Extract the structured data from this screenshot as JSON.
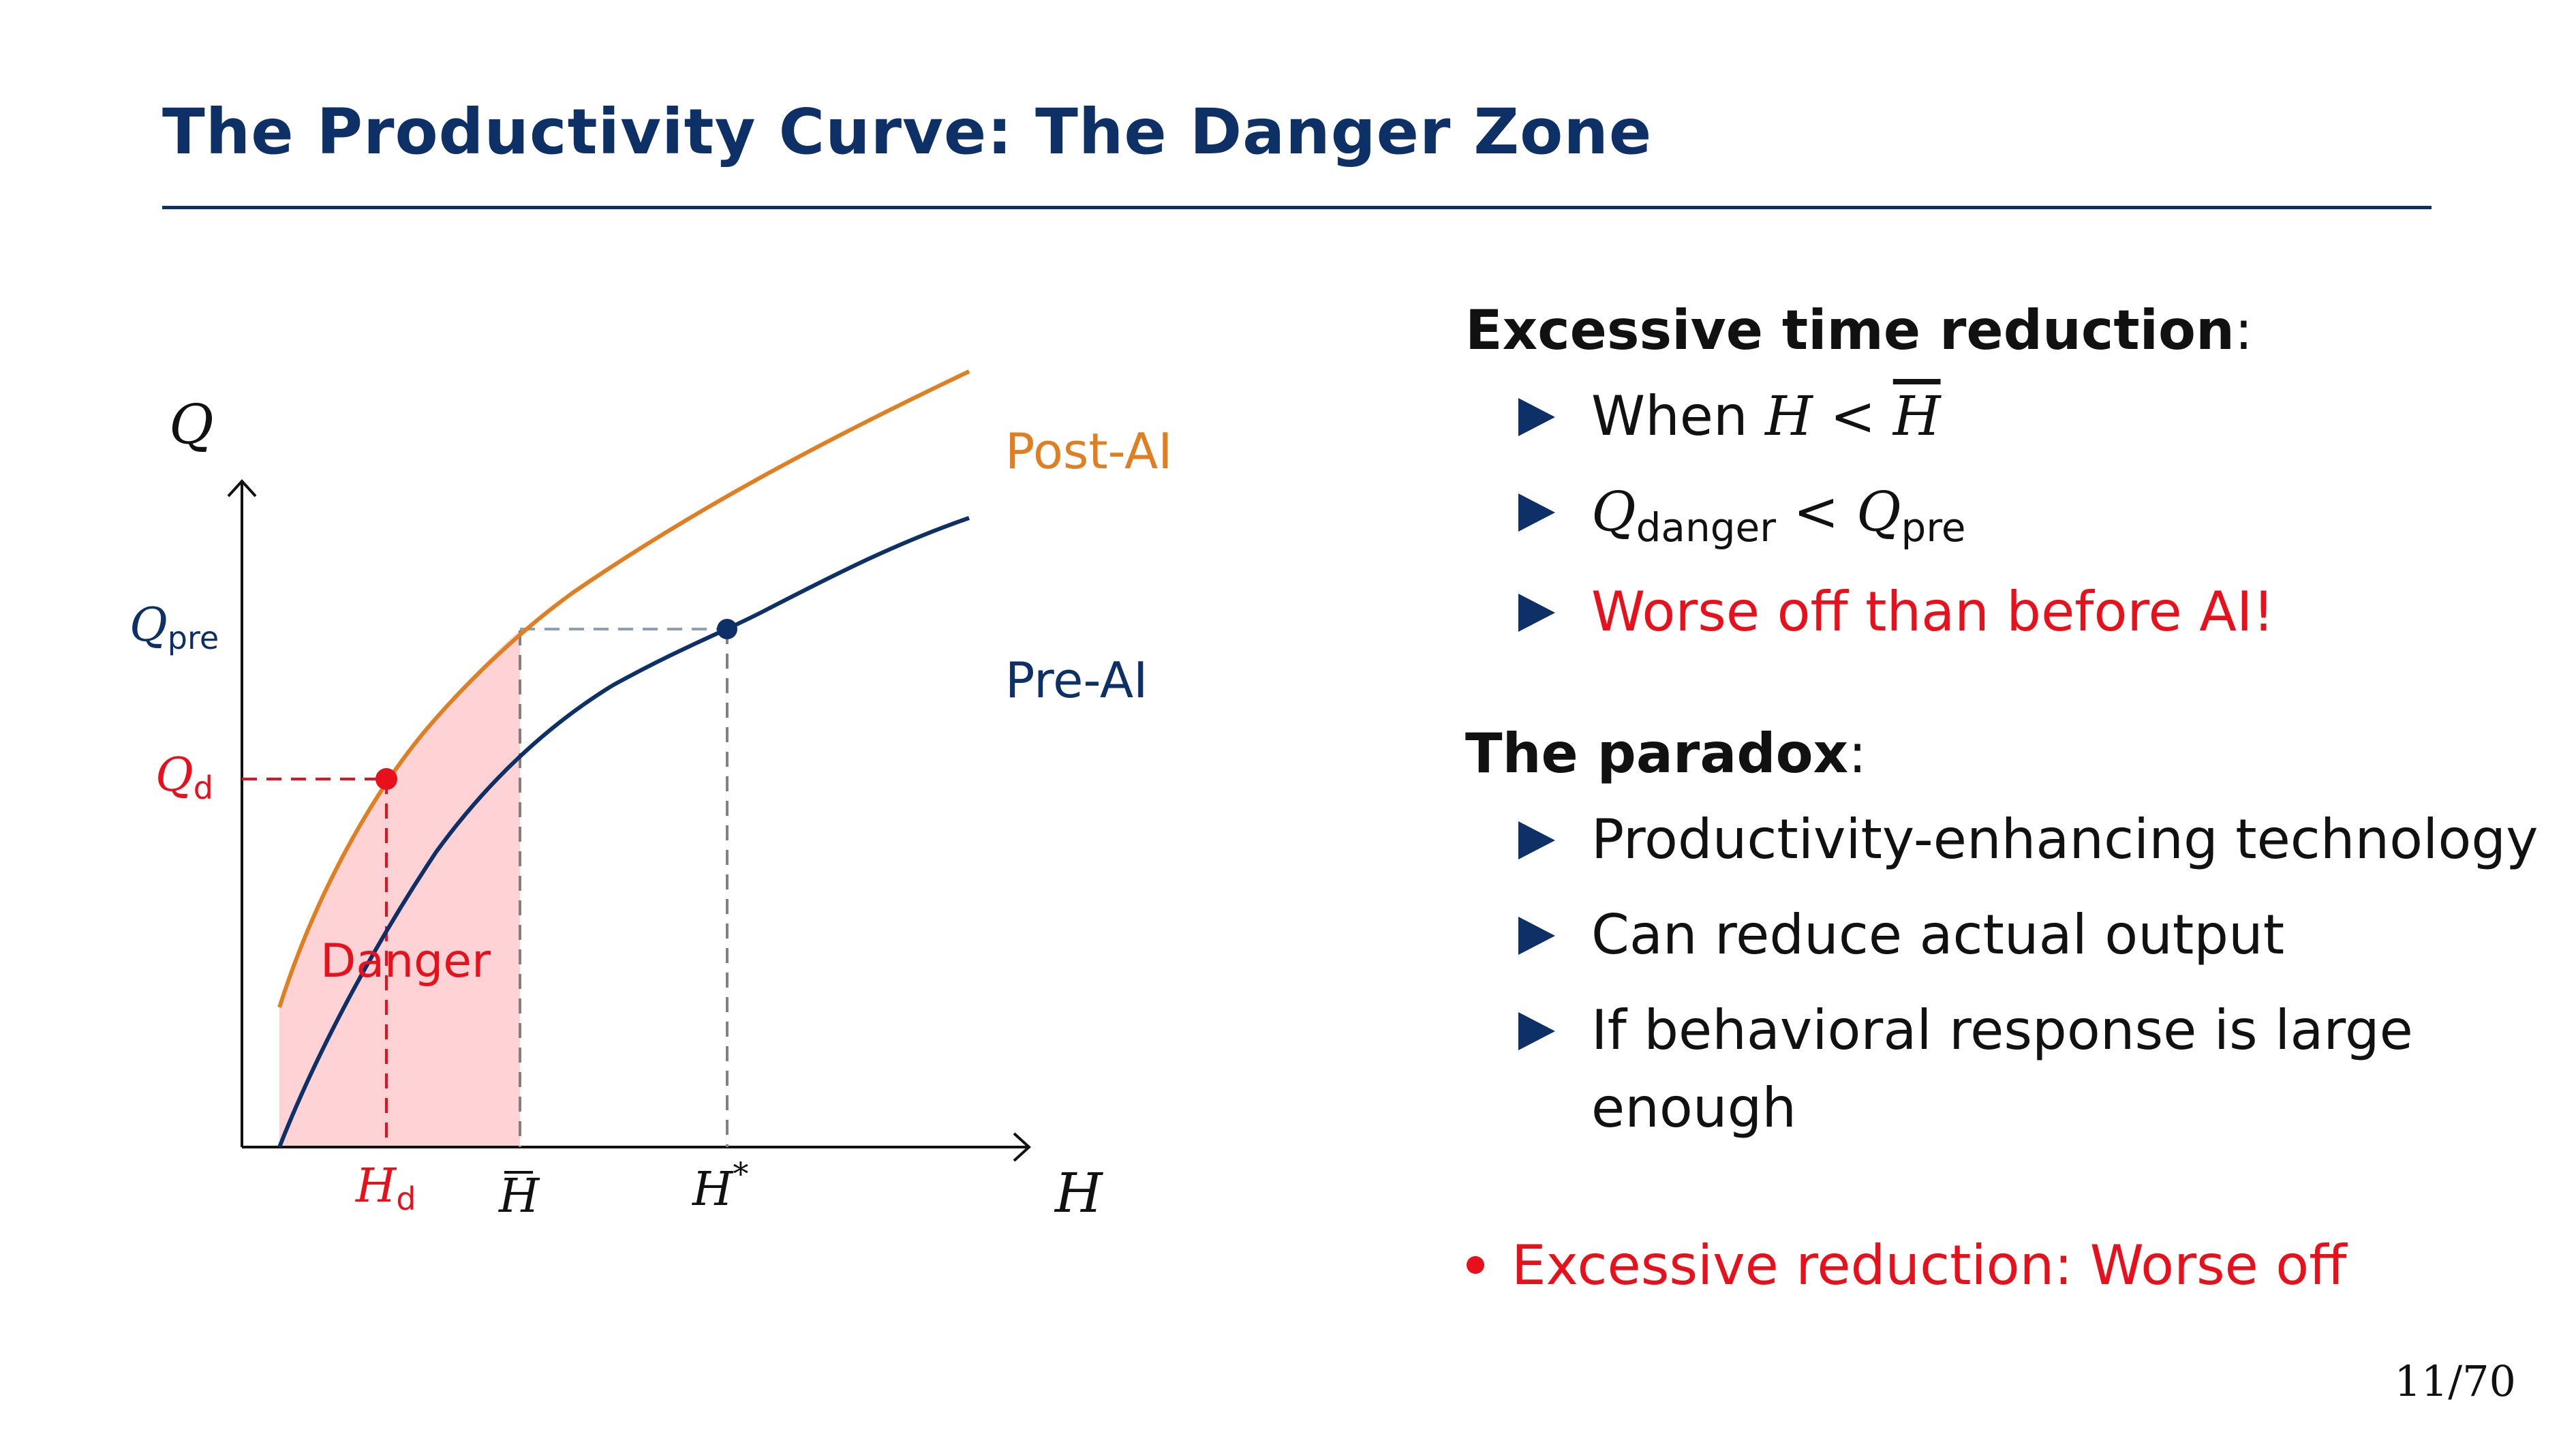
{
  "slide": {
    "title": "The Productivity Curve: The Danger Zone",
    "page_number": "11/70"
  },
  "diagram": {
    "axis_y_label": "Q",
    "axis_x_label": "H",
    "curve_post_label": "Post-AI",
    "curve_pre_label": "Pre-AI",
    "danger_label": "Danger",
    "y_tick_pre": {
      "base": "Q",
      "sub": "pre"
    },
    "y_tick_d": {
      "base": "Q",
      "sub": "d"
    },
    "x_tick_d": {
      "base": "H",
      "sub": "d"
    },
    "x_tick_bar": "H",
    "x_tick_star": {
      "base": "H",
      "sup": "*"
    },
    "colors": {
      "post_ai": "#e07f22",
      "pre_ai": "#0d3066",
      "danger": "#e8101a",
      "danger_fill": "#ffd3d6"
    }
  },
  "right": {
    "section1_heading": "Excessive time reduction",
    "section1_colon": ":",
    "bullet1": {
      "prefix": "When ",
      "lhs": "H",
      "op": " < ",
      "rhs": "H"
    },
    "bullet2": {
      "q1": "Q",
      "sub1": "danger",
      "op": " < ",
      "q2": "Q",
      "sub2": "pre"
    },
    "bullet3": "Worse off than before AI!",
    "section2_heading": "The paradox",
    "section2_colon": ":",
    "bullet4": "Productivity-enhancing technology",
    "bullet5": "Can reduce actual output",
    "bullet6": "If behavioral response is large enough",
    "final_point": "Excessive reduction: Worse off"
  }
}
